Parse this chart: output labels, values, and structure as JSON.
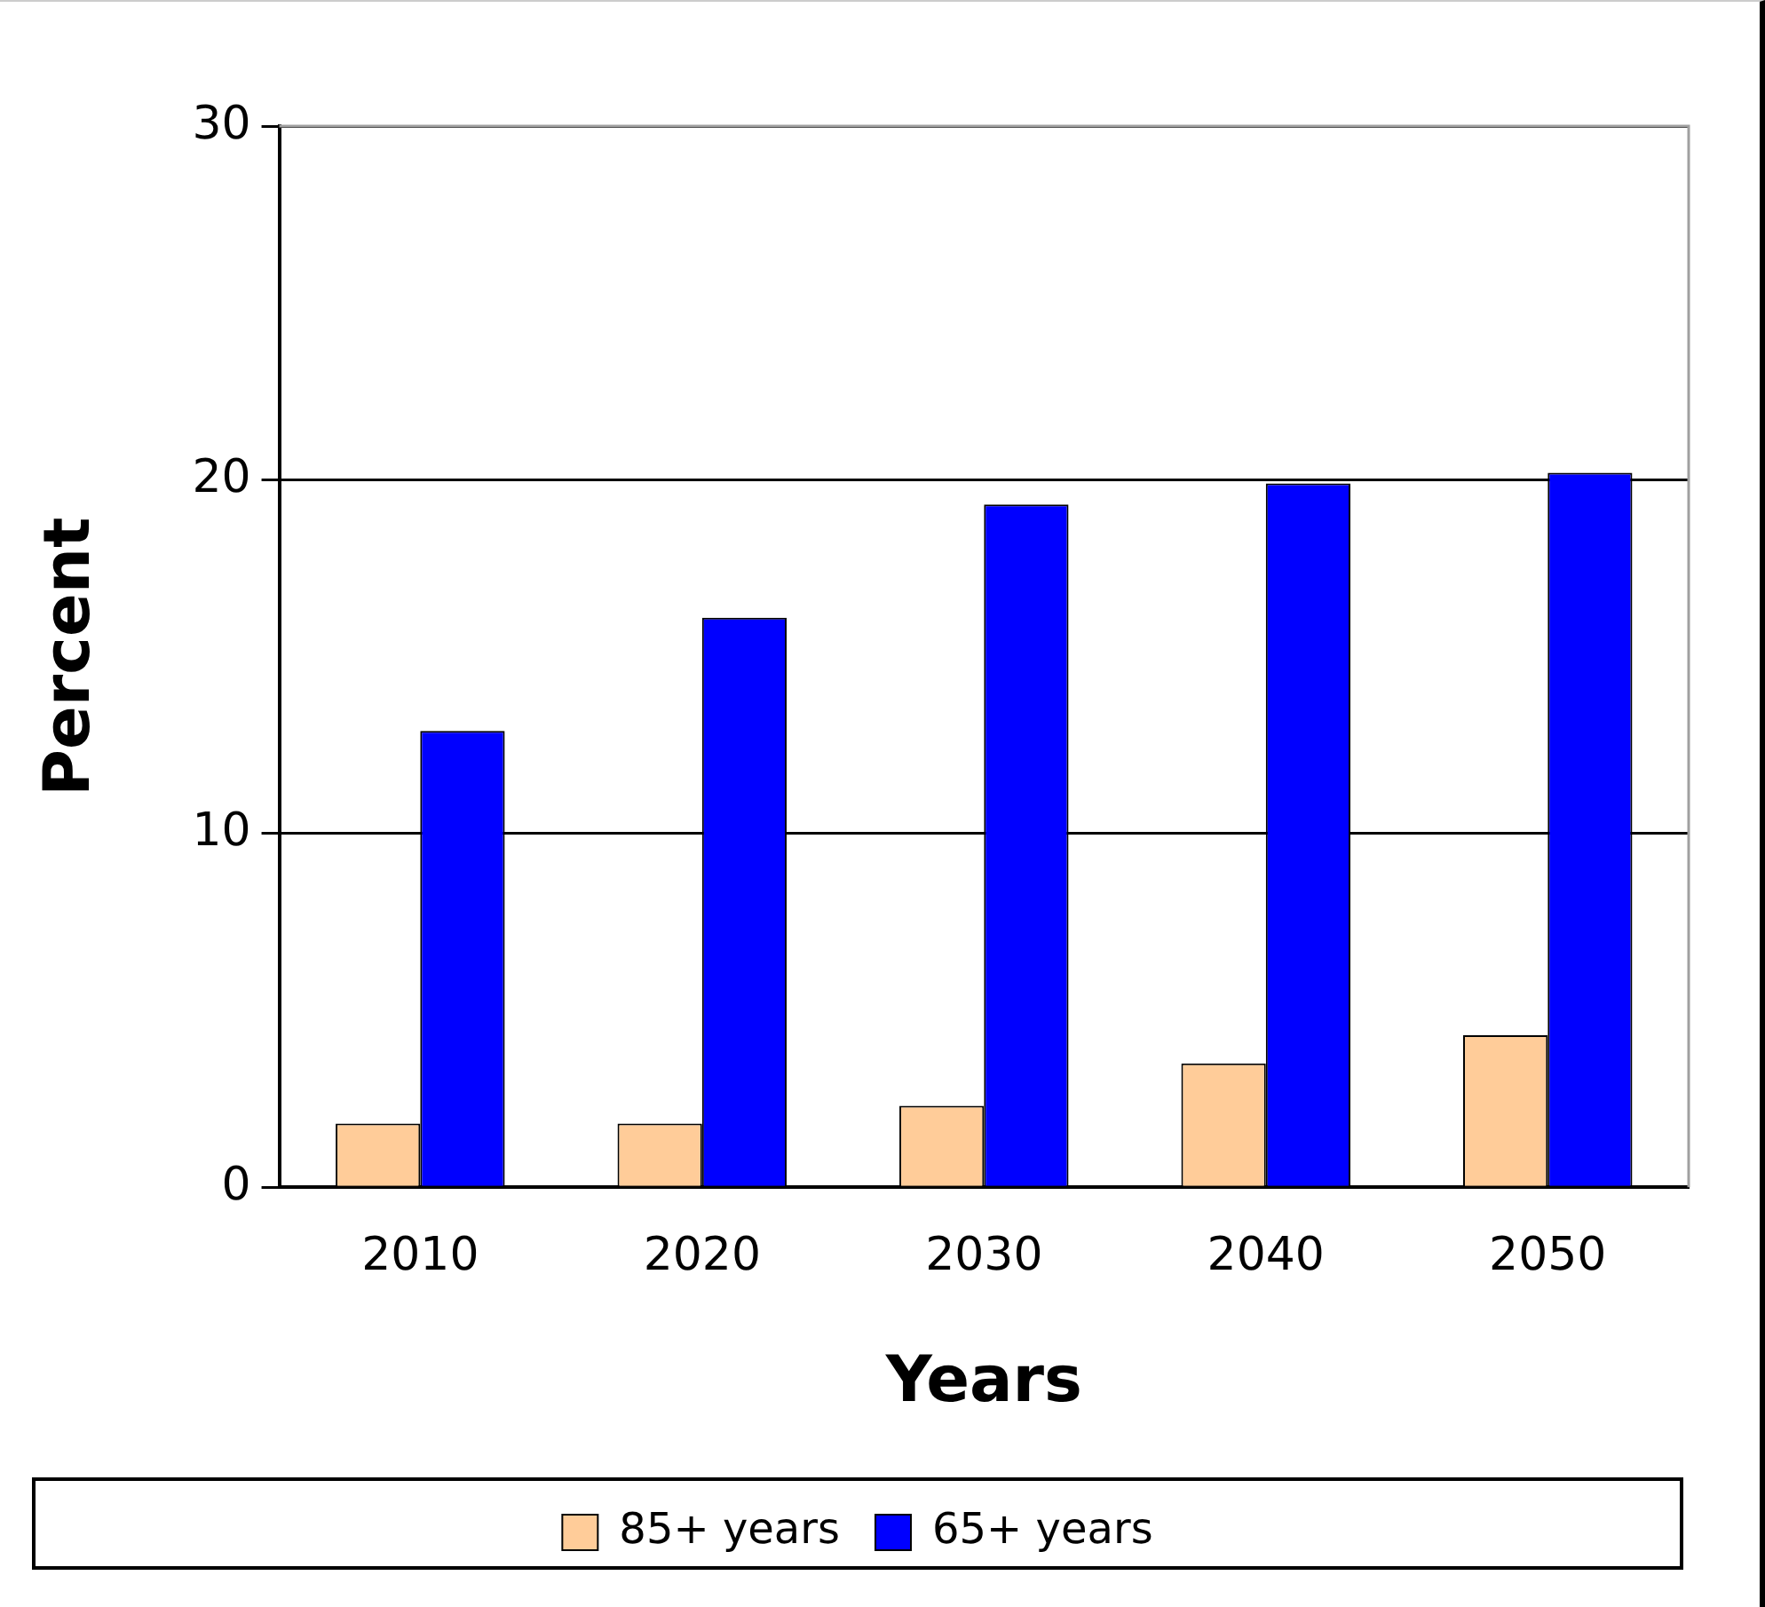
{
  "chart_data": {
    "type": "bar",
    "xlabel": "Years",
    "ylabel": "Percent",
    "categories": [
      "2010",
      "2020",
      "2030",
      "2040",
      "2050"
    ],
    "series": [
      {
        "name": "85+ years",
        "color": "#ffcc99",
        "values": [
          1.8,
          1.8,
          2.3,
          3.5,
          4.3
        ]
      },
      {
        "name": "65+ years",
        "color": "#0000ff",
        "values": [
          12.9,
          16.1,
          19.3,
          19.9,
          20.2
        ]
      }
    ],
    "ylim": [
      0,
      30
    ],
    "yticks": [
      0,
      10,
      20,
      30
    ],
    "grid": "y",
    "legend": "bottom"
  }
}
